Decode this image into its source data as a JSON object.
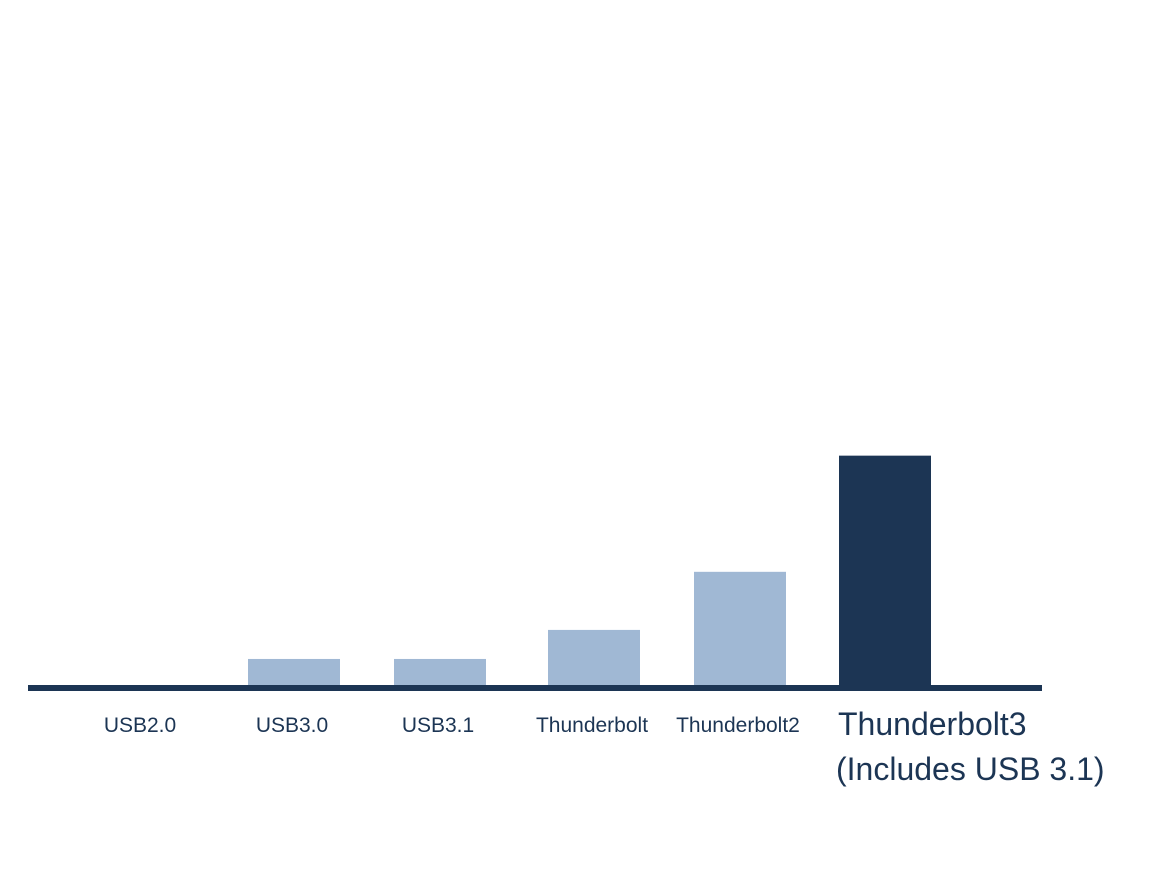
{
  "chart_data": {
    "type": "bar",
    "categories": [
      "USB2.0",
      "USB3.0",
      "USB3.1",
      "Thunderbolt",
      "Thunderbolt2",
      "Thunderbolt3"
    ],
    "highlight_note": "(Includes USB 3.1)",
    "values": [
      0.48,
      5,
      5,
      10,
      20,
      40
    ],
    "title": "",
    "xlabel": "",
    "ylabel": "",
    "ylim": [
      0,
      115
    ],
    "grid": false,
    "legend": "none",
    "colors": {
      "default_bar": "#a0b8d4",
      "highlight_bar": "#1c3554",
      "axis": "#1c3554",
      "label": "#1c3554"
    },
    "highlight_index": 5
  }
}
